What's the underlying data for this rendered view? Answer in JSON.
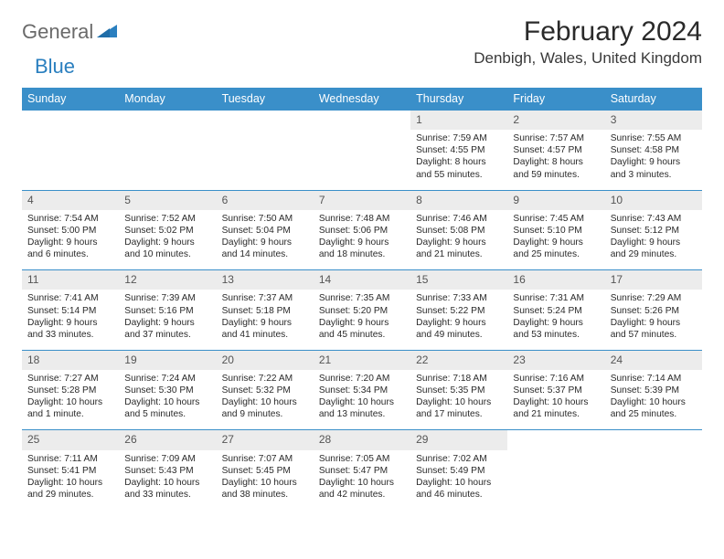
{
  "logo": {
    "text1": "General",
    "text2": "Blue"
  },
  "title": "February 2024",
  "location": "Denbigh, Wales, United Kingdom",
  "colors": {
    "header_bg": "#3a8fc9",
    "header_text": "#ffffff",
    "daynum_bg": "#ececec",
    "row_border": "#3a8fc9",
    "logo_gray": "#6a6a6a",
    "logo_blue": "#2a7fbf"
  },
  "weekdays": [
    "Sunday",
    "Monday",
    "Tuesday",
    "Wednesday",
    "Thursday",
    "Friday",
    "Saturday"
  ],
  "weeks": [
    [
      null,
      null,
      null,
      null,
      {
        "n": "1",
        "sunrise": "Sunrise: 7:59 AM",
        "sunset": "Sunset: 4:55 PM",
        "day": "Daylight: 8 hours and 55 minutes."
      },
      {
        "n": "2",
        "sunrise": "Sunrise: 7:57 AM",
        "sunset": "Sunset: 4:57 PM",
        "day": "Daylight: 8 hours and 59 minutes."
      },
      {
        "n": "3",
        "sunrise": "Sunrise: 7:55 AM",
        "sunset": "Sunset: 4:58 PM",
        "day": "Daylight: 9 hours and 3 minutes."
      }
    ],
    [
      {
        "n": "4",
        "sunrise": "Sunrise: 7:54 AM",
        "sunset": "Sunset: 5:00 PM",
        "day": "Daylight: 9 hours and 6 minutes."
      },
      {
        "n": "5",
        "sunrise": "Sunrise: 7:52 AM",
        "sunset": "Sunset: 5:02 PM",
        "day": "Daylight: 9 hours and 10 minutes."
      },
      {
        "n": "6",
        "sunrise": "Sunrise: 7:50 AM",
        "sunset": "Sunset: 5:04 PM",
        "day": "Daylight: 9 hours and 14 minutes."
      },
      {
        "n": "7",
        "sunrise": "Sunrise: 7:48 AM",
        "sunset": "Sunset: 5:06 PM",
        "day": "Daylight: 9 hours and 18 minutes."
      },
      {
        "n": "8",
        "sunrise": "Sunrise: 7:46 AM",
        "sunset": "Sunset: 5:08 PM",
        "day": "Daylight: 9 hours and 21 minutes."
      },
      {
        "n": "9",
        "sunrise": "Sunrise: 7:45 AM",
        "sunset": "Sunset: 5:10 PM",
        "day": "Daylight: 9 hours and 25 minutes."
      },
      {
        "n": "10",
        "sunrise": "Sunrise: 7:43 AM",
        "sunset": "Sunset: 5:12 PM",
        "day": "Daylight: 9 hours and 29 minutes."
      }
    ],
    [
      {
        "n": "11",
        "sunrise": "Sunrise: 7:41 AM",
        "sunset": "Sunset: 5:14 PM",
        "day": "Daylight: 9 hours and 33 minutes."
      },
      {
        "n": "12",
        "sunrise": "Sunrise: 7:39 AM",
        "sunset": "Sunset: 5:16 PM",
        "day": "Daylight: 9 hours and 37 minutes."
      },
      {
        "n": "13",
        "sunrise": "Sunrise: 7:37 AM",
        "sunset": "Sunset: 5:18 PM",
        "day": "Daylight: 9 hours and 41 minutes."
      },
      {
        "n": "14",
        "sunrise": "Sunrise: 7:35 AM",
        "sunset": "Sunset: 5:20 PM",
        "day": "Daylight: 9 hours and 45 minutes."
      },
      {
        "n": "15",
        "sunrise": "Sunrise: 7:33 AM",
        "sunset": "Sunset: 5:22 PM",
        "day": "Daylight: 9 hours and 49 minutes."
      },
      {
        "n": "16",
        "sunrise": "Sunrise: 7:31 AM",
        "sunset": "Sunset: 5:24 PM",
        "day": "Daylight: 9 hours and 53 minutes."
      },
      {
        "n": "17",
        "sunrise": "Sunrise: 7:29 AM",
        "sunset": "Sunset: 5:26 PM",
        "day": "Daylight: 9 hours and 57 minutes."
      }
    ],
    [
      {
        "n": "18",
        "sunrise": "Sunrise: 7:27 AM",
        "sunset": "Sunset: 5:28 PM",
        "day": "Daylight: 10 hours and 1 minute."
      },
      {
        "n": "19",
        "sunrise": "Sunrise: 7:24 AM",
        "sunset": "Sunset: 5:30 PM",
        "day": "Daylight: 10 hours and 5 minutes."
      },
      {
        "n": "20",
        "sunrise": "Sunrise: 7:22 AM",
        "sunset": "Sunset: 5:32 PM",
        "day": "Daylight: 10 hours and 9 minutes."
      },
      {
        "n": "21",
        "sunrise": "Sunrise: 7:20 AM",
        "sunset": "Sunset: 5:34 PM",
        "day": "Daylight: 10 hours and 13 minutes."
      },
      {
        "n": "22",
        "sunrise": "Sunrise: 7:18 AM",
        "sunset": "Sunset: 5:35 PM",
        "day": "Daylight: 10 hours and 17 minutes."
      },
      {
        "n": "23",
        "sunrise": "Sunrise: 7:16 AM",
        "sunset": "Sunset: 5:37 PM",
        "day": "Daylight: 10 hours and 21 minutes."
      },
      {
        "n": "24",
        "sunrise": "Sunrise: 7:14 AM",
        "sunset": "Sunset: 5:39 PM",
        "day": "Daylight: 10 hours and 25 minutes."
      }
    ],
    [
      {
        "n": "25",
        "sunrise": "Sunrise: 7:11 AM",
        "sunset": "Sunset: 5:41 PM",
        "day": "Daylight: 10 hours and 29 minutes."
      },
      {
        "n": "26",
        "sunrise": "Sunrise: 7:09 AM",
        "sunset": "Sunset: 5:43 PM",
        "day": "Daylight: 10 hours and 33 minutes."
      },
      {
        "n": "27",
        "sunrise": "Sunrise: 7:07 AM",
        "sunset": "Sunset: 5:45 PM",
        "day": "Daylight: 10 hours and 38 minutes."
      },
      {
        "n": "28",
        "sunrise": "Sunrise: 7:05 AM",
        "sunset": "Sunset: 5:47 PM",
        "day": "Daylight: 10 hours and 42 minutes."
      },
      {
        "n": "29",
        "sunrise": "Sunrise: 7:02 AM",
        "sunset": "Sunset: 5:49 PM",
        "day": "Daylight: 10 hours and 46 minutes."
      },
      null,
      null
    ]
  ]
}
